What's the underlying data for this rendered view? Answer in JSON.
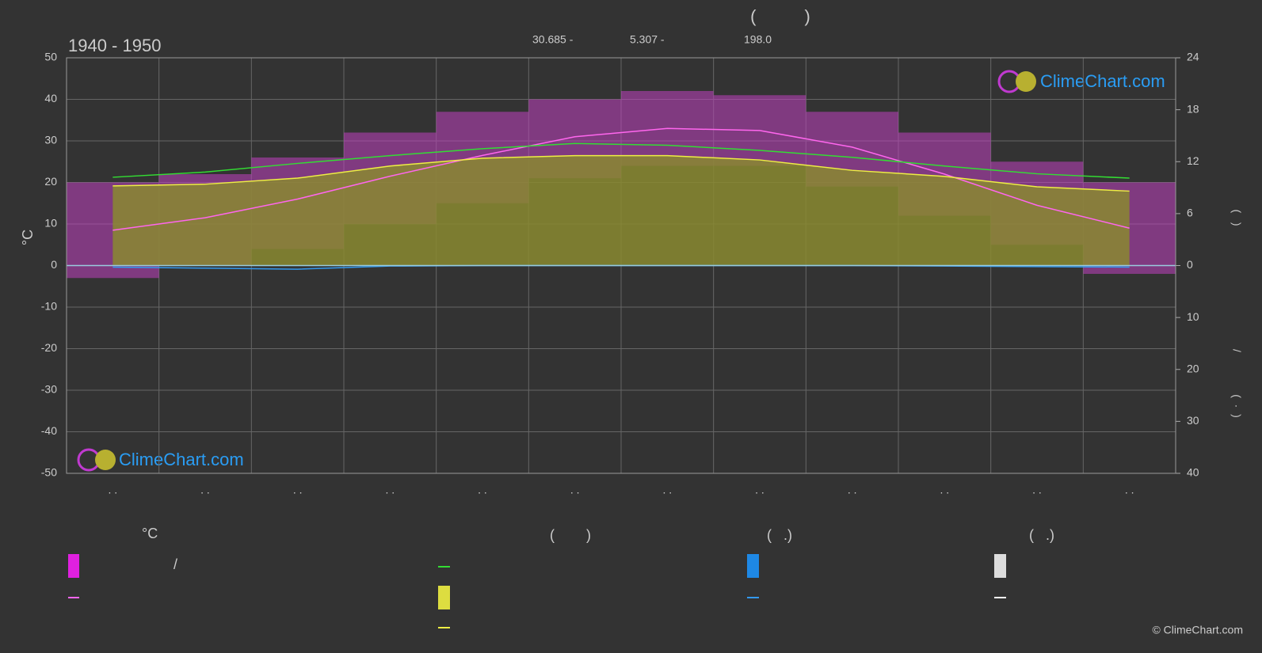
{
  "chart_data": {
    "type": "line",
    "title": "(          )",
    "subtitle": "1940 - 1950",
    "stats": [
      "30.685 -",
      "5.307 -",
      "198.0"
    ],
    "y_label": "°C",
    "y2_label": "(   )",
    "y3_label": "(  ·  )",
    "y_sep": "/",
    "categories": [
      ". .",
      ". .",
      ". .",
      ". .",
      ". .",
      ". .",
      ". .",
      ". .",
      ". .",
      ". .",
      ". .",
      ". ."
    ],
    "ylim": [
      -50,
      50
    ],
    "yticks": [
      -50,
      -40,
      -30,
      -20,
      -10,
      0,
      10,
      20,
      30,
      40,
      50
    ],
    "y2lim": [
      0,
      24
    ],
    "y2ticks": [
      0,
      6,
      12,
      18,
      24
    ],
    "y3lim": [
      0,
      40
    ],
    "y3ticks": [
      10,
      20,
      30,
      40
    ],
    "grid": true,
    "band_low": [
      -3,
      0,
      4,
      10,
      15,
      21,
      24,
      24,
      19,
      12,
      5,
      -2
    ],
    "band_high": [
      20,
      22,
      26,
      32,
      37,
      40,
      42,
      41,
      37,
      32,
      25,
      20
    ],
    "band_color": "#c040c0",
    "series": [
      {
        "color": "#ff66ee",
        "axis": "y",
        "values": [
          8.5,
          11.5,
          16,
          21.5,
          26.5,
          31,
          33,
          32.5,
          28.5,
          22,
          14.5,
          9
        ]
      },
      {
        "color": "#33dd33",
        "axis": "y2",
        "values": [
          10.2,
          10.8,
          11.8,
          12.7,
          13.5,
          14.1,
          13.9,
          13.3,
          12.5,
          11.5,
          10.6,
          10.1
        ]
      },
      {
        "color": "#eeee44",
        "axis": "y2",
        "area_color": "#8a8a30",
        "values": [
          9.2,
          9.4,
          10.1,
          11.5,
          12.4,
          12.7,
          12.7,
          12.2,
          11.0,
          10.3,
          9.1,
          8.6
        ]
      },
      {
        "color": "#3399ee",
        "axis": "y3",
        "values": [
          0.3,
          0.5,
          0.7,
          0.1,
          0,
          0,
          0,
          0,
          0,
          0.1,
          0.2,
          0.3
        ]
      }
    ],
    "legend_headers": [
      "°C",
      "(        )",
      "(   .)",
      "(   .)"
    ],
    "legend_sep": "/",
    "logo": "ClimeChart.com",
    "copyright": "© ClimeChart.com"
  }
}
